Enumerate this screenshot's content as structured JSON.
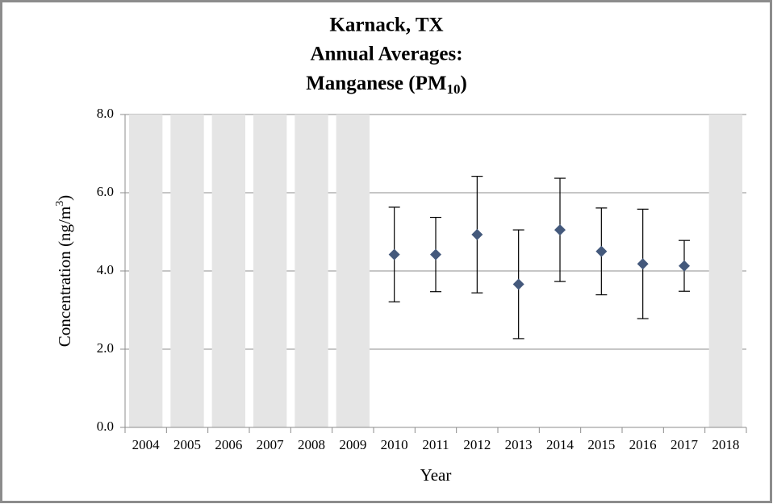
{
  "chart_data": {
    "type": "errorbar",
    "title": [
      "Karnack, TX",
      "Annual Averages:",
      {
        "text": "Manganese (PM",
        "subscript": "10",
        "suffix": ")"
      }
    ],
    "y_label": {
      "text": "Concentration (ng/m",
      "superscript": "3",
      "suffix": ")"
    },
    "x_label": "Year",
    "categories": [
      "2004",
      "2005",
      "2006",
      "2007",
      "2008",
      "2009",
      "2010",
      "2011",
      "2012",
      "2013",
      "2014",
      "2015",
      "2016",
      "2017",
      "2018"
    ],
    "values": [
      null,
      null,
      null,
      null,
      null,
      null,
      4.42,
      4.42,
      4.93,
      3.66,
      5.05,
      4.5,
      4.18,
      4.13,
      null
    ],
    "errors": [
      null,
      null,
      null,
      null,
      null,
      null,
      1.21,
      0.95,
      1.49,
      1.39,
      1.32,
      1.11,
      1.4,
      0.65,
      null
    ],
    "color": "#44597c",
    "error_color": "#000000",
    "shade_missing": true,
    "shade_color": "#e5e5e5",
    "ylim": [
      0,
      8
    ],
    "yticks": [
      {
        "value": 0,
        "label": "0.0"
      },
      {
        "value": 2,
        "label": "2.0"
      },
      {
        "value": 4,
        "label": "4.0"
      },
      {
        "value": 6,
        "label": "6.0"
      },
      {
        "value": 8,
        "label": "8.0"
      }
    ],
    "grid": true
  }
}
